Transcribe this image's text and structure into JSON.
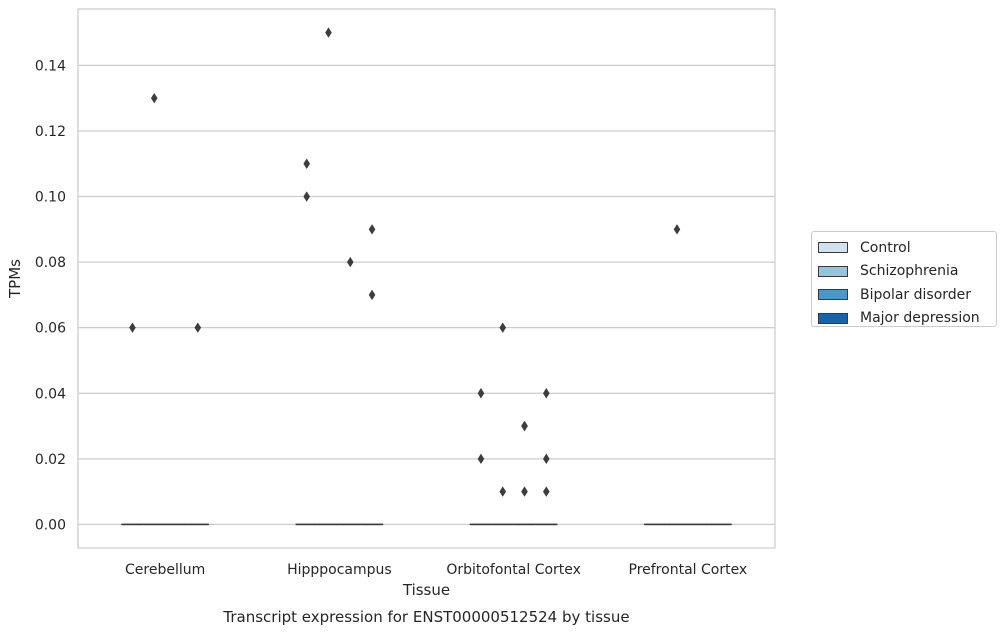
{
  "caption": "Transcript expression for ENST00000512524 by tissue",
  "chart_data": {
    "type": "box",
    "xlabel": "Tissue",
    "ylabel": "TPMs",
    "ylim": [
      -0.0072,
      0.1572
    ],
    "yticks": [
      "0.00",
      "0.02",
      "0.04",
      "0.06",
      "0.08",
      "0.10",
      "0.12",
      "0.14"
    ],
    "yticks_values": [
      0,
      0.02,
      0.04,
      0.06,
      0.08,
      0.1,
      0.12,
      0.14
    ],
    "categories": [
      "Cerebellum",
      "Hipppocampus",
      "Orbitofontal Cortex",
      "Prefrontal Cortex"
    ],
    "grid": "horizontal",
    "legend_placement": "right",
    "series": [
      {
        "name": "Control",
        "color": "#d0e1f2",
        "boxes": [
          {
            "median": 0,
            "q1": 0,
            "q3": 0
          },
          {
            "median": 0,
            "q1": 0,
            "q3": 0
          },
          {
            "median": 0,
            "q1": 0,
            "q3": 0
          },
          {
            "median": 0,
            "q1": 0,
            "q3": 0
          }
        ],
        "outliers": [
          [
            0.06
          ],
          [
            0.1,
            0.11
          ],
          [
            0.02,
            0.04
          ],
          []
        ]
      },
      {
        "name": "Schizophrenia",
        "color": "#94c4df",
        "boxes": [
          {
            "median": 0,
            "q1": 0,
            "q3": 0
          },
          {
            "median": 0,
            "q1": 0,
            "q3": 0
          },
          {
            "median": 0,
            "q1": 0,
            "q3": 0
          },
          {
            "median": 0,
            "q1": 0,
            "q3": 0
          }
        ],
        "outliers": [
          [
            0.13
          ],
          [
            0.15
          ],
          [
            0.01,
            0.06
          ],
          [
            0.09
          ]
        ]
      },
      {
        "name": "Bipolar disorder",
        "color": "#4a98c9",
        "boxes": [
          {
            "median": 0,
            "q1": 0,
            "q3": 0
          },
          {
            "median": 0,
            "q1": 0,
            "q3": 0
          },
          {
            "median": 0,
            "q1": 0,
            "q3": 0
          },
          {
            "median": 0,
            "q1": 0,
            "q3": 0
          }
        ],
        "outliers": [
          [],
          [
            0.08
          ],
          [
            0.01,
            0.03,
            0.03
          ],
          []
        ]
      },
      {
        "name": "Major depression",
        "color": "#1764ab",
        "boxes": [
          {
            "median": 0,
            "q1": 0,
            "q3": 0
          },
          {
            "median": 0,
            "q1": 0,
            "q3": 0
          },
          {
            "median": 0,
            "q1": 0,
            "q3": 0
          },
          {
            "median": 0,
            "q1": 0,
            "q3": 0
          }
        ],
        "outliers": [
          [
            0.06
          ],
          [
            0.07,
            0.09
          ],
          [
            0.01,
            0.02,
            0.04
          ],
          []
        ]
      }
    ]
  }
}
